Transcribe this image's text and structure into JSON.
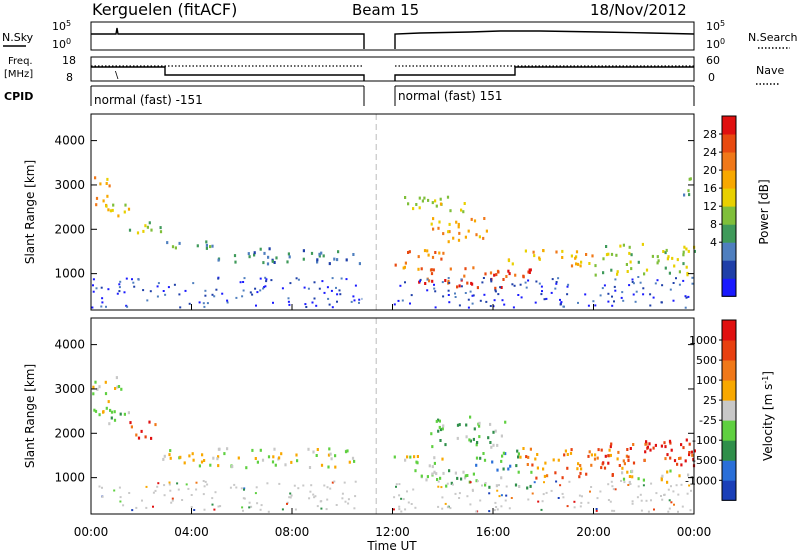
{
  "header": {
    "station": "Kerguelen (fitACF)",
    "beam": "Beam 15",
    "date": "18/Nov/2012"
  },
  "top_panels": {
    "nsky_label": "N.Sky",
    "nsearch_label": "N.Search",
    "noise_ticks": [
      "10^5",
      "10^0"
    ],
    "freq_label_1": "Freq.",
    "freq_label_2": "[MHz]",
    "freq_ticks": [
      "18",
      "8"
    ],
    "nave_label": "Nave",
    "nave_ticks": [
      "60",
      "0"
    ],
    "cpid_label": "CPID",
    "cpid_segments": [
      "normal (fast) -151",
      "normal (fast) 151"
    ]
  },
  "chart_data": [
    {
      "type": "heatmap",
      "title": "",
      "ylabel": "Slant Range [km]",
      "xlabel": "",
      "x_ticks": [
        "00:00",
        "04:00",
        "08:00",
        "12:00",
        "16:00",
        "20:00",
        "00:00"
      ],
      "y_ticks": [
        1000,
        2000,
        3000,
        4000
      ],
      "xlim_hours": [
        0,
        24
      ],
      "ylim_km": [
        180,
        4600
      ],
      "data_gap_hours": [
        10.8,
        11.9
      ],
      "colorbar": {
        "label": "Power [dB]",
        "ticks": [
          "28",
          "24",
          "20",
          "16",
          "12",
          "8",
          "4"
        ],
        "colors": [
          "#1a1aff",
          "#1f3fa8",
          "#4f7fbf",
          "#3f9a5a",
          "#7fbf3a",
          "#e8d000",
          "#f8a800",
          "#f07818",
          "#e84a10",
          "#e01010"
        ]
      },
      "echo_regions": [
        {
          "t0": 0.0,
          "t1": 0.7,
          "r0": 2400,
          "r1": 3300,
          "level": 6
        },
        {
          "t0": 0.4,
          "t1": 1.5,
          "r0": 2300,
          "r1": 2700,
          "level": 5
        },
        {
          "t0": 1.5,
          "t1": 2.8,
          "r0": 1900,
          "r1": 2300,
          "level": 4
        },
        {
          "t0": 2.8,
          "t1": 5.0,
          "r0": 1500,
          "r1": 1750,
          "level": 3
        },
        {
          "t0": 5.0,
          "t1": 10.8,
          "r0": 1250,
          "r1": 1600,
          "level": 2
        },
        {
          "t0": 12.0,
          "t1": 14.0,
          "r0": 1100,
          "r1": 1600,
          "level": 7
        },
        {
          "t0": 13.0,
          "t1": 17.5,
          "r0": 800,
          "r1": 1200,
          "level": 8
        },
        {
          "t0": 14.5,
          "t1": 16.5,
          "r0": 700,
          "r1": 950,
          "level": 9
        },
        {
          "t0": 13.5,
          "t1": 15.8,
          "r0": 1700,
          "r1": 2300,
          "level": 6
        },
        {
          "t0": 16.5,
          "t1": 20.0,
          "r0": 1200,
          "r1": 1600,
          "level": 6
        },
        {
          "t0": 20.0,
          "t1": 24.0,
          "r0": 1000,
          "r1": 1700,
          "level": 4
        },
        {
          "t0": 12.3,
          "t1": 15.0,
          "r0": 2400,
          "r1": 2800,
          "level": 5
        },
        {
          "t0": 23.5,
          "t1": 24.0,
          "r0": 2800,
          "r1": 3300,
          "level": 3
        }
      ]
    },
    {
      "type": "heatmap",
      "title": "",
      "ylabel": "Slant Range [km]",
      "xlabel": "Time UT",
      "x_ticks": [
        "00:00",
        "04:00",
        "08:00",
        "12:00",
        "16:00",
        "20:00",
        "00:00"
      ],
      "y_ticks": [
        1000,
        2000,
        3000,
        4000
      ],
      "xlim_hours": [
        0,
        24
      ],
      "ylim_km": [
        180,
        4600
      ],
      "data_gap_hours": [
        10.8,
        11.9
      ],
      "colorbar": {
        "label": "Velocity [m s^-1]",
        "ticks": [
          "1000",
          "500",
          "100",
          "25",
          "-25",
          "-100",
          "-500",
          "-1000"
        ],
        "colors": [
          "#1a3fb8",
          "#2a6fd8",
          "#2f8f4a",
          "#5fd040",
          "#c8c8c8",
          "#f8a800",
          "#f07818",
          "#e84010",
          "#e01010"
        ]
      },
      "echo_regions": [
        {
          "t0": 0.0,
          "t1": 1.2,
          "r0": 2400,
          "r1": 3300,
          "level": 4
        },
        {
          "t0": 0.4,
          "t1": 1.5,
          "r0": 2200,
          "r1": 2600,
          "level": 3
        },
        {
          "t0": 1.5,
          "t1": 2.8,
          "r0": 1900,
          "r1": 2300,
          "level": 7
        },
        {
          "t0": 2.8,
          "t1": 10.8,
          "r0": 1250,
          "r1": 1700,
          "level": 4
        },
        {
          "t0": 12.0,
          "t1": 14.0,
          "r0": 1150,
          "r1": 1550,
          "level": 4
        },
        {
          "t0": 13.0,
          "t1": 17.5,
          "r0": 800,
          "r1": 1200,
          "level": 3
        },
        {
          "t0": 13.5,
          "t1": 16.5,
          "r0": 1700,
          "r1": 2400,
          "level": 3
        },
        {
          "t0": 15.0,
          "t1": 17.0,
          "r0": 1200,
          "r1": 1700,
          "level": 2
        },
        {
          "t0": 17.0,
          "t1": 21.5,
          "r0": 1000,
          "r1": 1700,
          "level": 6
        },
        {
          "t0": 20.0,
          "t1": 24.0,
          "r0": 1300,
          "r1": 1800,
          "level": 7
        },
        {
          "t0": 22.0,
          "t1": 24.0,
          "r0": 1500,
          "r1": 1900,
          "level": 8
        },
        {
          "t0": 21.0,
          "t1": 24.0,
          "r0": 900,
          "r1": 1200,
          "level": 4
        }
      ]
    }
  ]
}
